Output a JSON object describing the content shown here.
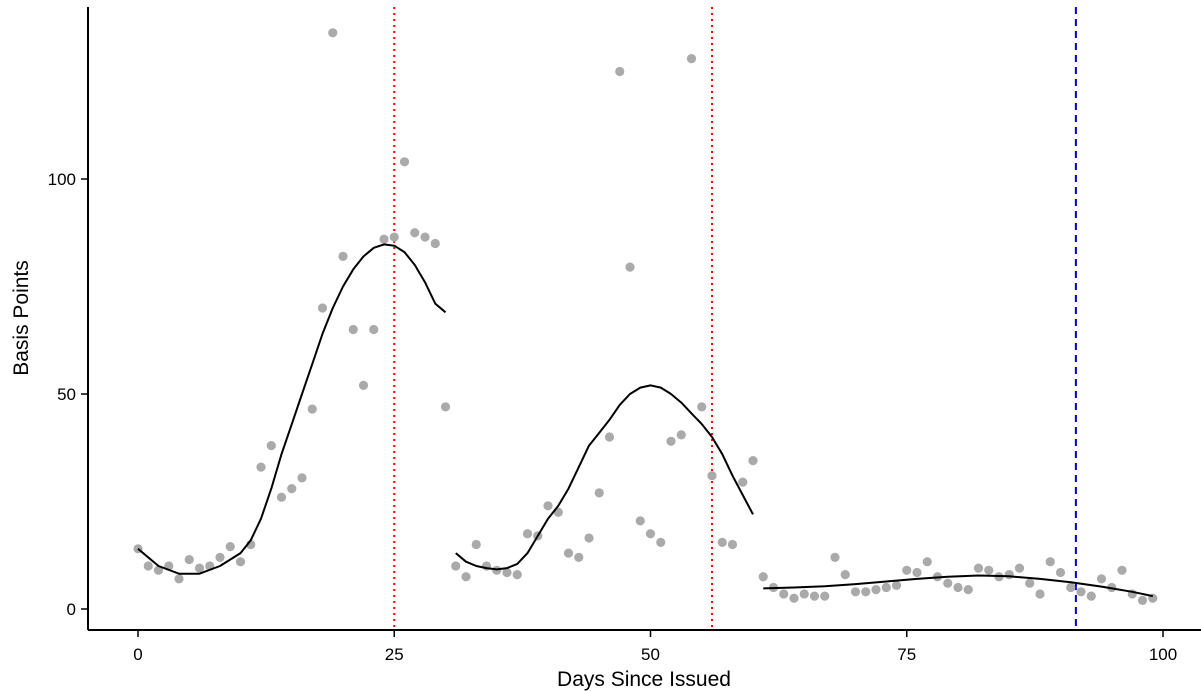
{
  "chart_data": {
    "type": "scatter",
    "xlabel": "Days Since Issued",
    "ylabel": "Basis Points",
    "xlim": [
      -5,
      102
    ],
    "ylim": [
      -5,
      140
    ],
    "x_ticks": [
      0,
      25,
      50,
      75,
      100
    ],
    "y_ticks": [
      0,
      50,
      100
    ],
    "grid": false,
    "colors": {
      "points": "#aaaaaa",
      "smooth": "#000000",
      "red_line": "#ff0000",
      "blue_line": "#0000cc"
    },
    "points": [
      [
        0,
        14
      ],
      [
        1,
        10
      ],
      [
        2,
        9
      ],
      [
        3,
        10
      ],
      [
        4,
        7
      ],
      [
        5,
        11.5
      ],
      [
        6,
        9.5
      ],
      [
        7,
        10
      ],
      [
        8,
        12
      ],
      [
        9,
        14.5
      ],
      [
        10,
        11
      ],
      [
        11,
        15
      ],
      [
        12,
        33
      ],
      [
        13,
        38
      ],
      [
        14,
        26
      ],
      [
        15,
        28
      ],
      [
        16,
        30.5
      ],
      [
        17,
        46.5
      ],
      [
        18,
        70
      ],
      [
        19,
        134
      ],
      [
        20,
        82
      ],
      [
        21,
        65
      ],
      [
        22,
        52
      ],
      [
        23,
        65
      ],
      [
        24,
        86
      ],
      [
        25,
        86.5
      ],
      [
        26,
        104
      ],
      [
        27,
        87.5
      ],
      [
        28,
        86.5
      ],
      [
        29,
        85
      ],
      [
        30,
        47
      ],
      [
        31,
        10
      ],
      [
        32,
        7.5
      ],
      [
        33,
        15
      ],
      [
        34,
        10
      ],
      [
        35,
        9
      ],
      [
        36,
        8.5
      ],
      [
        37,
        8
      ],
      [
        38,
        17.5
      ],
      [
        39,
        17
      ],
      [
        40,
        24
      ],
      [
        41,
        22.5
      ],
      [
        42,
        13
      ],
      [
        43,
        12
      ],
      [
        44,
        16.5
      ],
      [
        45,
        27
      ],
      [
        46,
        40
      ],
      [
        47,
        125
      ],
      [
        48,
        79.5
      ],
      [
        49,
        20.5
      ],
      [
        50,
        17.5
      ],
      [
        51,
        15.5
      ],
      [
        52,
        39
      ],
      [
        53,
        40.5
      ],
      [
        54,
        128
      ],
      [
        55,
        47
      ],
      [
        56,
        31
      ],
      [
        57,
        15.5
      ],
      [
        58,
        15
      ],
      [
        59,
        29.5
      ],
      [
        60,
        34.5
      ],
      [
        61,
        7.5
      ],
      [
        62,
        5
      ],
      [
        63,
        3.5
      ],
      [
        64,
        2.5
      ],
      [
        65,
        3.5
      ],
      [
        66,
        3
      ],
      [
        67,
        3
      ],
      [
        68,
        12
      ],
      [
        69,
        8
      ],
      [
        70,
        4
      ],
      [
        71,
        4
      ],
      [
        72,
        4.5
      ],
      [
        73,
        5
      ],
      [
        74,
        5.5
      ],
      [
        75,
        9
      ],
      [
        76,
        8.5
      ],
      [
        77,
        11
      ],
      [
        78,
        7.5
      ],
      [
        79,
        6
      ],
      [
        80,
        5
      ],
      [
        81,
        4.5
      ],
      [
        82,
        9.5
      ],
      [
        83,
        9
      ],
      [
        84,
        7.5
      ],
      [
        85,
        8
      ],
      [
        86,
        9.5
      ],
      [
        87,
        6
      ],
      [
        88,
        3.5
      ],
      [
        89,
        11
      ],
      [
        90,
        8.5
      ],
      [
        91,
        5
      ],
      [
        92,
        4
      ],
      [
        93,
        3
      ],
      [
        94,
        7
      ],
      [
        95,
        5
      ],
      [
        96,
        9
      ],
      [
        97,
        3.5
      ],
      [
        98,
        2
      ],
      [
        99,
        2.5
      ]
    ],
    "smooth_segments": [
      [
        [
          0,
          14
        ],
        [
          2,
          10
        ],
        [
          4,
          8.2
        ],
        [
          6,
          8.2
        ],
        [
          8,
          10
        ],
        [
          10,
          13
        ],
        [
          11,
          16
        ],
        [
          12,
          21
        ],
        [
          13,
          28
        ],
        [
          14,
          36
        ],
        [
          15,
          43
        ],
        [
          16,
          50
        ],
        [
          17,
          57
        ],
        [
          18,
          64
        ],
        [
          19,
          70
        ],
        [
          20,
          75
        ],
        [
          21,
          79
        ],
        [
          22,
          82
        ],
        [
          23,
          84
        ],
        [
          24,
          84.8
        ],
        [
          25,
          84.5
        ],
        [
          26,
          83
        ],
        [
          27,
          80
        ],
        [
          28,
          76
        ],
        [
          29,
          71
        ],
        [
          30,
          69
        ]
      ],
      [
        [
          31,
          13
        ],
        [
          32,
          11
        ],
        [
          33,
          10
        ],
        [
          34,
          9.5
        ],
        [
          35,
          9.2
        ],
        [
          36,
          9.5
        ],
        [
          37,
          10.5
        ],
        [
          38,
          13
        ],
        [
          39,
          17
        ],
        [
          40,
          21
        ],
        [
          41,
          24
        ],
        [
          42,
          28
        ],
        [
          43,
          33
        ],
        [
          44,
          38
        ],
        [
          45,
          41
        ],
        [
          46,
          44
        ],
        [
          47,
          47.5
        ],
        [
          48,
          50
        ],
        [
          49,
          51.5
        ],
        [
          50,
          52
        ],
        [
          51,
          51.5
        ],
        [
          52,
          50
        ],
        [
          53,
          48
        ],
        [
          54,
          45.5
        ],
        [
          55,
          43
        ],
        [
          56,
          40
        ],
        [
          57,
          36
        ],
        [
          58,
          31
        ],
        [
          59,
          26.5
        ],
        [
          60,
          22
        ]
      ],
      [
        [
          61,
          4.8
        ],
        [
          64,
          5
        ],
        [
          67,
          5.3
        ],
        [
          70,
          5.8
        ],
        [
          73,
          6.4
        ],
        [
          76,
          7
        ],
        [
          79,
          7.5
        ],
        [
          82,
          7.8
        ],
        [
          85,
          7.6
        ],
        [
          88,
          7
        ],
        [
          91,
          6.2
        ],
        [
          94,
          5.2
        ],
        [
          97,
          4
        ],
        [
          99,
          3
        ]
      ]
    ],
    "vlines_red": [
      25,
      56
    ],
    "vline_blue": 91.5
  }
}
